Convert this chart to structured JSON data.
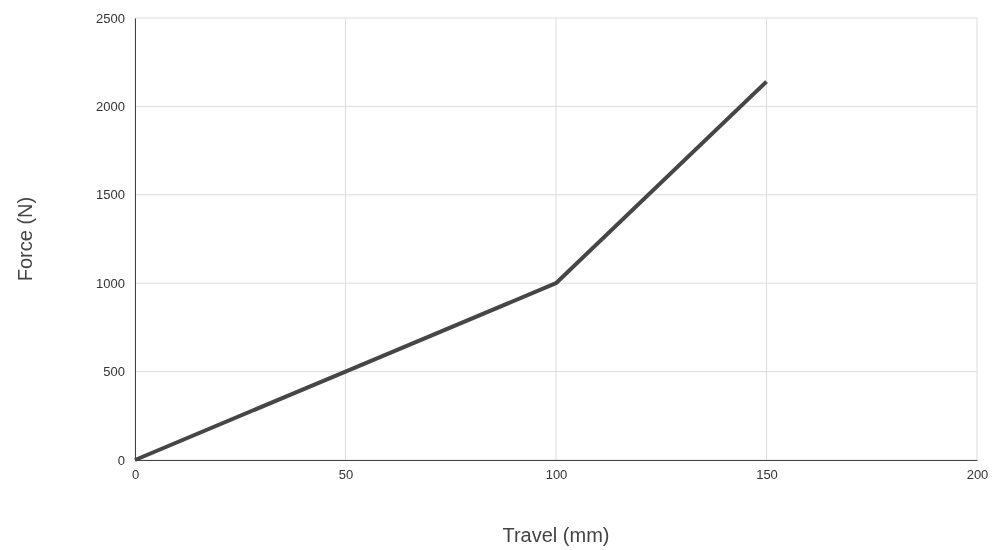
{
  "chart_data": {
    "type": "line",
    "xlabel": "Travel (mm)",
    "ylabel": "Force (N)",
    "x": [
      0,
      50,
      100,
      150
    ],
    "series": [
      {
        "color": "#464646",
        "values": [
          0,
          500,
          1000,
          2140
        ]
      }
    ],
    "xlim": [
      0,
      200
    ],
    "xticks": [
      0,
      50,
      100,
      150,
      200
    ],
    "ylim": [
      0,
      2500
    ],
    "yticks": [
      0,
      500,
      1000,
      1500,
      2000,
      2500
    ],
    "grid": true,
    "line_style": "solid"
  }
}
